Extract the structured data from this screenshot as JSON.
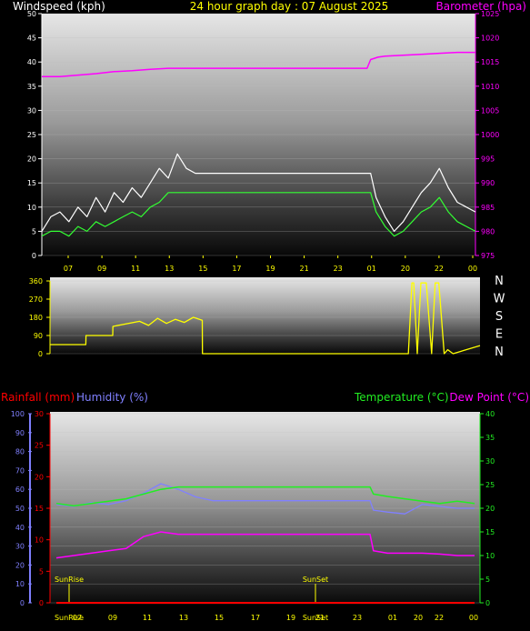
{
  "header": {
    "windspeed_label": "Windspeed (kph)",
    "title": "24 hour graph day : 07 August 2025",
    "barometer_label": "Barometer (hpa)",
    "windspeed_color": "#ffffff",
    "title_color": "#ffff00",
    "barometer_color": "#ff00ff"
  },
  "bottom_header": {
    "rainfall_label": "Rainfall (mm)",
    "humidity_label": "Humidity (%)",
    "temperature_label": "Temperature (°C)",
    "dewpoint_label": "Dew Point (°C)"
  },
  "colors": {
    "wind_gust": "#ffffff",
    "wind_avg": "#33ff33",
    "barometer": "#ff00ff",
    "wind_dir": "#ffff00",
    "rain": "#ff0000",
    "humidity": "#8080ff",
    "temperature": "#22ee22",
    "dewpoint": "#ff00ff",
    "sun": "#ffff00"
  },
  "x_ticks": [
    "07",
    "09",
    "11",
    "13",
    "15",
    "17",
    "19",
    "21",
    "23",
    "01",
    "20",
    "22",
    "00"
  ],
  "bottom_x_ticks": [
    "SunRise",
    "07",
    "09",
    "11",
    "13",
    "15",
    "17",
    "19",
    "SunSet",
    "21",
    "23",
    "01",
    "20",
    "22",
    "00"
  ],
  "sun_labels": {
    "sunrise": "SunRise",
    "sunset": "SunSet"
  },
  "direction_labels": [
    "N",
    "W",
    "S",
    "E",
    "N"
  ],
  "chart_data": [
    {
      "type": "line",
      "title": "24 hour graph day : 07 August 2025",
      "ylabel": "Windspeed (kph)",
      "ylim": [
        0,
        50
      ],
      "yticks": [
        0,
        5,
        10,
        15,
        20,
        25,
        30,
        35,
        40,
        45,
        50
      ],
      "y2label": "Barometer (hpa)",
      "y2lim": [
        975,
        1025
      ],
      "y2ticks": [
        975,
        980,
        985,
        990,
        995,
        1000,
        1005,
        1010,
        1015,
        1020,
        1025
      ],
      "xlim": [
        0,
        24
      ],
      "series": [
        {
          "name": "Wind gust",
          "axis": "y",
          "x": [
            0,
            0.5,
            1,
            1.5,
            2,
            2.5,
            3,
            3.5,
            4,
            4.5,
            5,
            5.5,
            6,
            6.5,
            7,
            7.5,
            8,
            8.5,
            9,
            9.5,
            10,
            10.5,
            11,
            11.5,
            12,
            12.5,
            13,
            18.2,
            18.5,
            19,
            19.5,
            20,
            20.5,
            21,
            21.5,
            22,
            22.5,
            23,
            23.5,
            24
          ],
          "y": [
            5,
            8,
            9,
            7,
            10,
            8,
            12,
            9,
            13,
            11,
            14,
            12,
            15,
            18,
            16,
            21,
            18,
            17,
            17,
            17,
            17,
            17,
            17,
            17,
            17,
            17,
            17,
            17,
            12,
            8,
            5,
            7,
            10,
            13,
            15,
            18,
            14,
            11,
            10,
            9
          ]
        },
        {
          "name": "Wind avg",
          "axis": "y",
          "x": [
            0,
            0.5,
            1,
            1.5,
            2,
            2.5,
            3,
            3.5,
            4,
            4.5,
            5,
            5.5,
            6,
            6.5,
            7,
            7.5,
            8,
            8.5,
            9,
            9.5,
            10,
            10.5,
            11,
            11.5,
            12,
            12.5,
            13,
            18.2,
            18.5,
            19,
            19.5,
            20,
            20.5,
            21,
            21.5,
            22,
            22.5,
            23,
            23.5,
            24
          ],
          "y": [
            4,
            5,
            5,
            4,
            6,
            5,
            7,
            6,
            7,
            8,
            9,
            8,
            10,
            11,
            13,
            13,
            13,
            13,
            13,
            13,
            13,
            13,
            13,
            13,
            13,
            13,
            13,
            13,
            9,
            6,
            4,
            5,
            7,
            9,
            10,
            12,
            9,
            7,
            6,
            5
          ]
        },
        {
          "name": "Barometer",
          "axis": "y2",
          "x": [
            0,
            1,
            2,
            3,
            4,
            5,
            6,
            7,
            8,
            9,
            10,
            11,
            12,
            13,
            14,
            15,
            16,
            17,
            18,
            18.2,
            18.6,
            19,
            20,
            21,
            22,
            23,
            24
          ],
          "y": [
            1012,
            1012,
            1012.3,
            1012.6,
            1013,
            1013.2,
            1013.5,
            1013.7,
            1013.7,
            1013.7,
            1013.7,
            1013.7,
            1013.7,
            1013.7,
            1013.7,
            1013.7,
            1013.7,
            1013.7,
            1013.7,
            1015.5,
            1016,
            1016.2,
            1016.4,
            1016.6,
            1016.8,
            1017,
            1017
          ]
        }
      ]
    },
    {
      "type": "line",
      "ylabel": "Wind direction",
      "ylim": [
        0,
        360
      ],
      "yticks": [
        0,
        90,
        180,
        270,
        360
      ],
      "xlim": [
        0,
        24
      ],
      "series": [
        {
          "name": "Wind direction",
          "x": [
            0,
            2,
            2.01,
            3.5,
            3.51,
            5,
            5.5,
            6,
            6.5,
            7,
            7.5,
            8,
            8.5,
            8.51,
            20,
            20.2,
            20.3,
            20.5,
            20.7,
            21,
            21.3,
            21.5,
            21.7,
            22,
            22.2,
            22.5,
            24
          ],
          "y": [
            45,
            45,
            90,
            90,
            135,
            160,
            140,
            175,
            150,
            170,
            155,
            180,
            165,
            0,
            0,
            350,
            350,
            0,
            350,
            350,
            0,
            350,
            350,
            0,
            20,
            0,
            40
          ]
        }
      ]
    },
    {
      "type": "line",
      "ylabel": "Humidity (%)",
      "ylim": [
        0,
        100
      ],
      "yticks": [
        0,
        10,
        20,
        30,
        40,
        50,
        60,
        70,
        80,
        90,
        100
      ],
      "y2label": "Rainfall (mm)",
      "y2lim": [
        0,
        30
      ],
      "y2ticks": [
        0,
        5,
        10,
        15,
        20,
        25,
        30
      ],
      "y3label": "Temperature (°C)",
      "y3lim": [
        0,
        40
      ],
      "y3ticks": [
        0,
        5,
        10,
        15,
        20,
        25,
        30,
        35,
        40
      ],
      "xlim": [
        0,
        24
      ],
      "series": [
        {
          "name": "Humidity",
          "axis": "y",
          "x": [
            0,
            1,
            2,
            3,
            4,
            5,
            6,
            7,
            8,
            9,
            10,
            11,
            12,
            13,
            14,
            15,
            16,
            17,
            18,
            18.2,
            19,
            20,
            21,
            22,
            23,
            24
          ],
          "y": [
            52,
            51,
            53,
            52,
            54,
            58,
            63,
            60,
            56,
            54,
            54,
            54,
            54,
            54,
            54,
            54,
            54,
            54,
            54,
            49,
            48,
            47,
            52,
            51,
            50,
            50
          ]
        },
        {
          "name": "Rainfall",
          "axis": "y2",
          "x": [
            0,
            24
          ],
          "y": [
            0,
            0
          ]
        },
        {
          "name": "Temperature",
          "axis": "y3",
          "x": [
            0,
            1,
            2,
            3,
            4,
            5,
            6,
            7,
            8,
            9,
            10,
            11,
            12,
            13,
            14,
            15,
            16,
            17,
            18,
            18.2,
            19,
            20,
            21,
            22,
            23,
            24
          ],
          "y": [
            21,
            20.5,
            21,
            21.5,
            22,
            23,
            24,
            24.5,
            24.5,
            24.5,
            24.5,
            24.5,
            24.5,
            24.5,
            24.5,
            24.5,
            24.5,
            24.5,
            24.5,
            23,
            22.5,
            22,
            21.5,
            21,
            21.5,
            21
          ]
        },
        {
          "name": "Dew Point",
          "axis": "y3",
          "x": [
            0,
            1,
            2,
            3,
            4,
            5,
            6,
            7,
            8,
            9,
            10,
            11,
            12,
            13,
            14,
            15,
            16,
            17,
            18,
            18.2,
            19,
            20,
            21,
            22,
            23,
            24
          ],
          "y": [
            9.5,
            10,
            10.5,
            11,
            11.5,
            14,
            15,
            14.5,
            14.5,
            14.5,
            14.5,
            14.5,
            14.5,
            14.5,
            14.5,
            14.5,
            14.5,
            14.5,
            14.5,
            11,
            10.5,
            10.5,
            10.5,
            10.3,
            10,
            10
          ]
        }
      ]
    }
  ]
}
